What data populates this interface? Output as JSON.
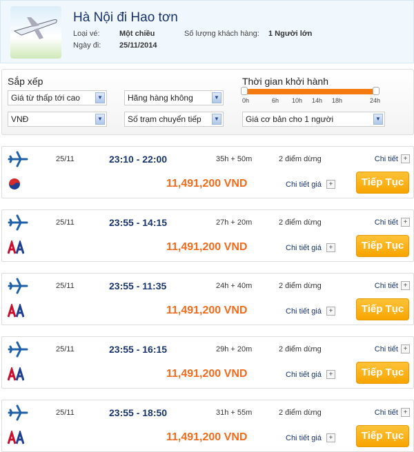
{
  "header": {
    "title": "Hà Nội đi Hao tơn",
    "ticket_type_label": "Loại vé:",
    "ticket_type": "Một chiều",
    "passengers_label": "Số lượng khách hàng:",
    "passengers": "1 Người lớn",
    "date_label": "Ngày đi:",
    "date": "25/11/2014"
  },
  "filters": {
    "sort_title": "Sắp xếp",
    "sort_value": "Giá từ thấp tới cao",
    "airline_value": "Hãng hàng không",
    "currency_value": "VNĐ",
    "stops_value": "Số trạm chuyển tiếp",
    "time_title": "Thời gian khởi hành",
    "time_ticks": [
      "0h",
      "6h",
      "10h",
      "14h",
      "18h",
      "24h"
    ],
    "time_range": [
      0,
      24
    ],
    "price_value": "Giá cơ bản cho 1 người"
  },
  "labels": {
    "detail": "Chi tiết",
    "price_detail": "Chi tiết giá",
    "continue": "Tiếp Tục",
    "plus": "+"
  },
  "flights": [
    {
      "airline": "korean-air",
      "date": "25/11",
      "time": "23:10 - 22:00",
      "duration": "35h + 50m",
      "stops": "2 điểm dừng",
      "price": "11,491,200 VND"
    },
    {
      "airline": "american-airlines",
      "date": "25/11",
      "time": "23:55 - 14:15",
      "duration": "27h + 20m",
      "stops": "2 điểm dừng",
      "price": "11,491,200 VND"
    },
    {
      "airline": "american-airlines",
      "date": "25/11",
      "time": "23:55 - 11:35",
      "duration": "24h + 40m",
      "stops": "2 điểm dừng",
      "price": "11,491,200 VND"
    },
    {
      "airline": "american-airlines",
      "date": "25/11",
      "time": "23:55 - 16:15",
      "duration": "29h + 20m",
      "stops": "2 điểm dừng",
      "price": "11,491,200 VND"
    },
    {
      "airline": "american-airlines",
      "date": "25/11",
      "time": "23:55 - 18:50",
      "duration": "31h + 55m",
      "stops": "2 điểm dừng",
      "price": "11,491,200 VND"
    }
  ],
  "colors": {
    "accent": "#f26a1b",
    "button": "#f7a400",
    "navy": "#16336e",
    "slider": "#f47a10"
  }
}
